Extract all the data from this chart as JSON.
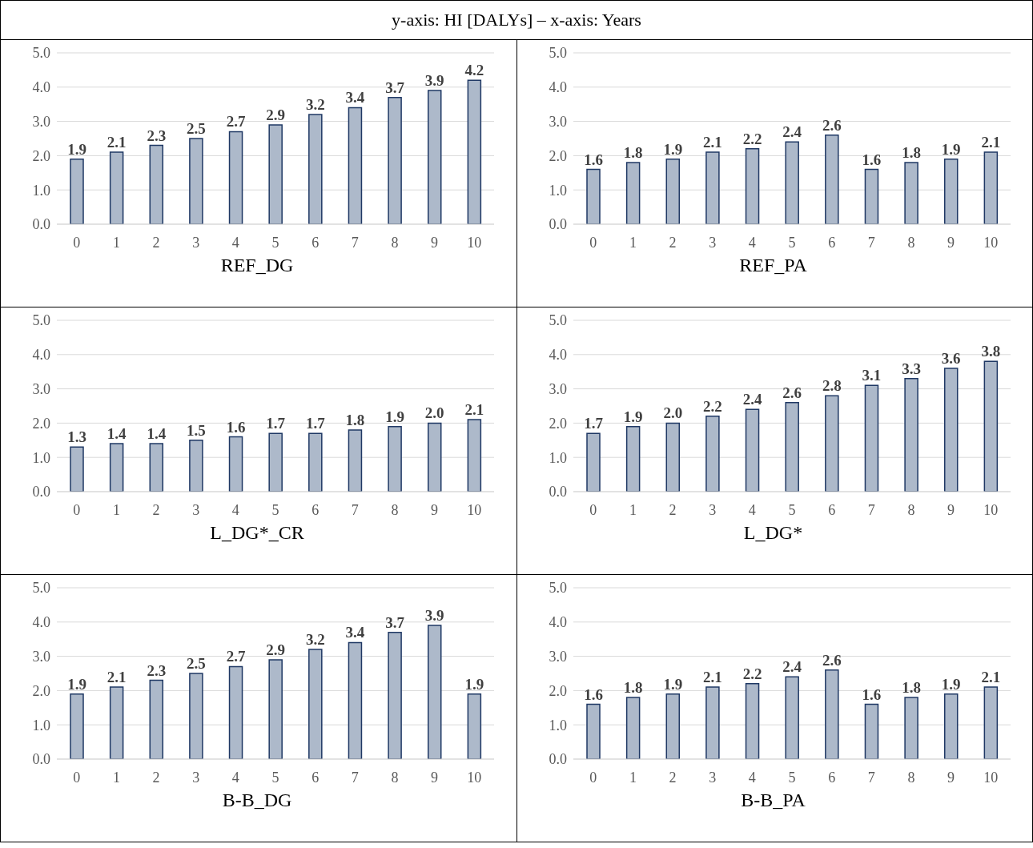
{
  "chart_data": [
    {
      "type": "bar",
      "title": "REF_DG",
      "annotations": [
        "y-axis: HI [DALYs] – x-axis: Years"
      ],
      "categories": [
        "0",
        "1",
        "2",
        "3",
        "4",
        "5",
        "6",
        "7",
        "8",
        "9",
        "10"
      ],
      "values": [
        1.9,
        2.1,
        2.3,
        2.5,
        2.7,
        2.9,
        3.2,
        3.4,
        3.7,
        3.9,
        4.2
      ],
      "value_labels": [
        "1.9",
        "2.1",
        "2.3",
        "2.5",
        "2.7",
        "2.9",
        "3.2",
        "3.4",
        "3.7",
        "3.9",
        "4.2"
      ],
      "color": "#adb9ca",
      "ylim": [
        0,
        5
      ],
      "yticks": [
        {
          "value": 0,
          "label": "0.0"
        },
        {
          "value": 1,
          "label": "1.0"
        },
        {
          "value": 2,
          "label": "2.0"
        },
        {
          "value": 3,
          "label": "3.0"
        },
        {
          "value": 4,
          "label": "4.0"
        },
        {
          "value": 5,
          "label": "5.0"
        }
      ],
      "grid": "y"
    },
    {
      "type": "bar",
      "title": "REF_PA",
      "categories": [
        "0",
        "1",
        "2",
        "3",
        "4",
        "5",
        "6",
        "7",
        "8",
        "9",
        "10"
      ],
      "values": [
        1.6,
        1.8,
        1.9,
        2.1,
        2.2,
        2.4,
        2.6,
        1.6,
        1.8,
        1.9,
        2.1
      ],
      "value_labels": [
        "1.6",
        "1.8",
        "1.9",
        "2.1",
        "2.2",
        "2.4",
        "2.6",
        "1.6",
        "1.8",
        "1.9",
        "2.1"
      ],
      "color": "#adb9ca",
      "ylim": [
        0,
        5
      ],
      "yticks": [
        {
          "value": 0,
          "label": "0.0"
        },
        {
          "value": 1,
          "label": "1.0"
        },
        {
          "value": 2,
          "label": "2.0"
        },
        {
          "value": 3,
          "label": "3.0"
        },
        {
          "value": 4,
          "label": "4.0"
        },
        {
          "value": 5,
          "label": "5.0"
        }
      ],
      "grid": "y"
    },
    {
      "type": "bar",
      "title": "L_DG*_CR",
      "categories": [
        "0",
        "1",
        "2",
        "3",
        "4",
        "5",
        "6",
        "7",
        "8",
        "9",
        "10"
      ],
      "values": [
        1.3,
        1.4,
        1.4,
        1.5,
        1.6,
        1.7,
        1.7,
        1.8,
        1.9,
        2.0,
        2.1
      ],
      "value_labels": [
        "1.3",
        "1.4",
        "1.4",
        "1.5",
        "1.6",
        "1.7",
        "1.7",
        "1.8",
        "1.9",
        "2.0",
        "2.1"
      ],
      "color": "#adb9ca",
      "ylim": [
        0,
        5
      ],
      "yticks": [
        {
          "value": 0,
          "label": "0.0"
        },
        {
          "value": 1,
          "label": "1.0"
        },
        {
          "value": 2,
          "label": "2.0"
        },
        {
          "value": 3,
          "label": "3.0"
        },
        {
          "value": 4,
          "label": "4.0"
        },
        {
          "value": 5,
          "label": "5.0"
        }
      ],
      "grid": "y"
    },
    {
      "type": "bar",
      "title": "L_DG*",
      "categories": [
        "0",
        "1",
        "2",
        "3",
        "4",
        "5",
        "6",
        "7",
        "8",
        "9",
        "10"
      ],
      "values": [
        1.7,
        1.9,
        2.0,
        2.2,
        2.4,
        2.6,
        2.8,
        3.1,
        3.3,
        3.6,
        3.8
      ],
      "value_labels": [
        "1.7",
        "1.9",
        "2.0",
        "2.2",
        "2.4",
        "2.6",
        "2.8",
        "3.1",
        "3.3",
        "3.6",
        "3.8"
      ],
      "color": "#adb9ca",
      "ylim": [
        0,
        5
      ],
      "yticks": [
        {
          "value": 0,
          "label": "0.0"
        },
        {
          "value": 1,
          "label": "1.0"
        },
        {
          "value": 2,
          "label": "2.0"
        },
        {
          "value": 3,
          "label": "3.0"
        },
        {
          "value": 4,
          "label": "4.0"
        },
        {
          "value": 5,
          "label": "5.0"
        }
      ],
      "grid": "y"
    },
    {
      "type": "bar",
      "title": "B-B_DG",
      "categories": [
        "0",
        "1",
        "2",
        "3",
        "4",
        "5",
        "6",
        "7",
        "8",
        "9",
        "10"
      ],
      "values": [
        1.9,
        2.1,
        2.3,
        2.5,
        2.7,
        2.9,
        3.2,
        3.4,
        3.7,
        3.9,
        1.9
      ],
      "value_labels": [
        "1.9",
        "2.1",
        "2.3",
        "2.5",
        "2.7",
        "2.9",
        "3.2",
        "3.4",
        "3.7",
        "3.9",
        "1.9"
      ],
      "color": "#adb9ca",
      "ylim": [
        0,
        5
      ],
      "yticks": [
        {
          "value": 0,
          "label": "0.0"
        },
        {
          "value": 1,
          "label": "1.0"
        },
        {
          "value": 2,
          "label": "2.0"
        },
        {
          "value": 3,
          "label": "3.0"
        },
        {
          "value": 4,
          "label": "4.0"
        },
        {
          "value": 5,
          "label": "5.0"
        }
      ],
      "grid": "y"
    },
    {
      "type": "bar",
      "title": "B-B_PA",
      "categories": [
        "0",
        "1",
        "2",
        "3",
        "4",
        "5",
        "6",
        "7",
        "8",
        "9",
        "10"
      ],
      "values": [
        1.6,
        1.8,
        1.9,
        2.1,
        2.2,
        2.4,
        2.6,
        1.6,
        1.8,
        1.9,
        2.1
      ],
      "value_labels": [
        "1.6",
        "1.8",
        "1.9",
        "2.1",
        "2.2",
        "2.4",
        "2.6",
        "1.6",
        "1.8",
        "1.9",
        "2.1"
      ],
      "color": "#adb9ca",
      "ylim": [
        0,
        5
      ],
      "yticks": [
        {
          "value": 0,
          "label": "0.0"
        },
        {
          "value": 1,
          "label": "1.0"
        },
        {
          "value": 2,
          "label": "2.0"
        },
        {
          "value": 3,
          "label": "3.0"
        },
        {
          "value": 4,
          "label": "4.0"
        },
        {
          "value": 5,
          "label": "5.0"
        }
      ],
      "grid": "y"
    }
  ]
}
